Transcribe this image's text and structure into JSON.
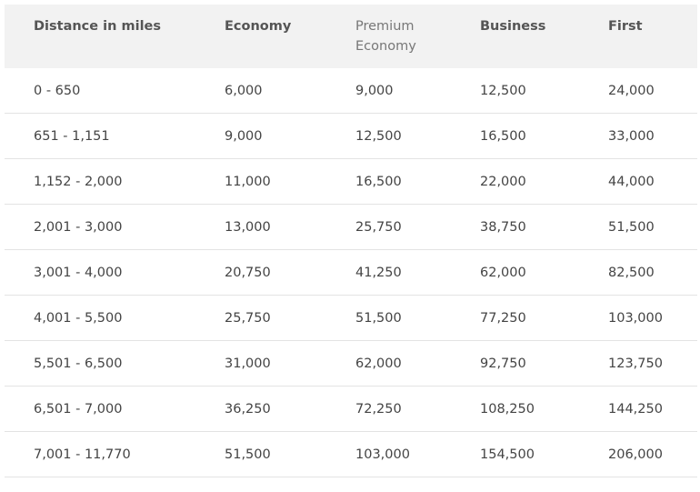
{
  "table": {
    "header": [
      "Distance in miles",
      "Economy",
      "Premium Economy",
      "Business",
      "First"
    ],
    "rows": [
      [
        "0 - 650",
        "6,000",
        "9,000",
        "12,500",
        "24,000"
      ],
      [
        "651 - 1,151",
        "9,000",
        "12,500",
        "16,500",
        "33,000"
      ],
      [
        "1,152 - 2,000",
        "11,000",
        "16,500",
        "22,000",
        "44,000"
      ],
      [
        "2,001 - 3,000",
        "13,000",
        "25,750",
        "38,750",
        "51,500"
      ],
      [
        "3,001 - 4,000",
        "20,750",
        "41,250",
        "62,000",
        "82,500"
      ],
      [
        "4,001 - 5,500",
        "25,750",
        "51,500",
        "77,250",
        "103,000"
      ],
      [
        "5,501 - 6,500",
        "31,000",
        "62,000",
        "92,750",
        "123,750"
      ],
      [
        "6,501 - 7,000",
        "36,250",
        "72,250",
        "108,250",
        "144,250"
      ],
      [
        "7,001 - 11,770",
        "51,500",
        "103,000",
        "154,500",
        "206,000"
      ]
    ]
  }
}
